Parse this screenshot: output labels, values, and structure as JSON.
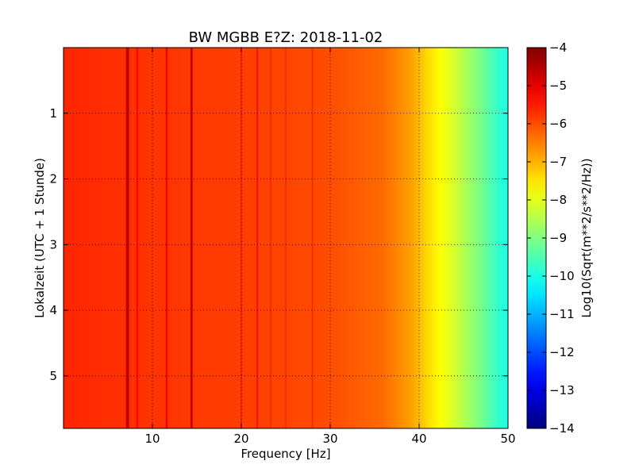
{
  "chart_data": {
    "type": "heatmap",
    "title": "BW MGBB E?Z: 2018-11-02",
    "xlabel": "Frequency [Hz]",
    "ylabel": "Lokalzeit (UTC + 1 Stunde)",
    "xlim": [
      0,
      50
    ],
    "ylim": [
      0,
      5.8
    ],
    "y_inverted": true,
    "xticks": [
      10,
      20,
      30,
      40,
      50
    ],
    "yticks": [
      1,
      2,
      3,
      4,
      5
    ],
    "grid": true,
    "colormap": "jet",
    "colorbar": {
      "label": "Log10(Sqrt(m**2/s**2/Hz))",
      "range": [
        -14,
        -4
      ],
      "ticks": [
        -4,
        -5,
        -6,
        -7,
        -8,
        -9,
        -10,
        -11,
        -12,
        -13,
        -14
      ]
    },
    "background_level": {
      "frequency_hz": [
        0,
        5,
        10,
        20,
        30,
        36,
        39,
        41,
        43,
        45,
        47,
        49,
        50
      ],
      "value": [
        -5.6,
        -5.7,
        -5.75,
        -5.85,
        -6.0,
        -6.3,
        -6.8,
        -7.4,
        -7.9,
        -8.5,
        -9.1,
        -9.8,
        -10.0
      ]
    },
    "spectral_lines": [
      {
        "frequency_hz": 7.2,
        "value": -4.6,
        "width_hz": 0.35
      },
      {
        "frequency_hz": 14.4,
        "value": -4.7,
        "width_hz": 0.25
      },
      {
        "frequency_hz": 11.6,
        "value": -5.1,
        "width_hz": 0.2
      },
      {
        "frequency_hz": 8.3,
        "value": -5.3,
        "width_hz": 0.2
      },
      {
        "frequency_hz": 21.8,
        "value": -5.3,
        "width_hz": 0.15
      },
      {
        "frequency_hz": 20.0,
        "value": -5.4,
        "width_hz": 0.12
      },
      {
        "frequency_hz": 25.0,
        "value": -5.5,
        "width_hz": 0.12
      },
      {
        "frequency_hz": 28.0,
        "value": -5.5,
        "width_hz": 0.12
      },
      {
        "frequency_hz": 23.3,
        "value": -5.6,
        "width_hz": 0.15
      }
    ]
  }
}
